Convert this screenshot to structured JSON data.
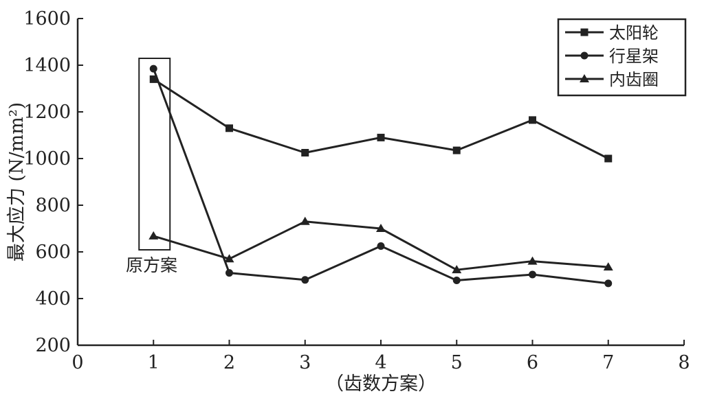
{
  "chart_data": {
    "type": "line",
    "xlabel": "（齿数方案）",
    "ylabel": "最大应力 (N/mm²)",
    "xlim": [
      0,
      8
    ],
    "ylim": [
      200,
      1600
    ],
    "xticks": [
      "0",
      "1",
      "2",
      "3",
      "4",
      "5",
      "6",
      "7",
      "8"
    ],
    "yticks": [
      "200",
      "400",
      "600",
      "800",
      "1000",
      "1200",
      "1400",
      "1600"
    ],
    "grid": false,
    "legend_position": "top-right",
    "x": [
      1,
      2,
      3,
      4,
      5,
      6,
      7
    ],
    "series": [
      {
        "name": "太阳轮",
        "marker": "square",
        "values": [
          1340,
          1130,
          1025,
          1090,
          1035,
          1165,
          1000
        ]
      },
      {
        "name": "行星架",
        "marker": "circle",
        "values": [
          1385,
          510,
          480,
          625,
          478,
          503,
          465
        ]
      },
      {
        "name": "内齿圈",
        "marker": "triangle",
        "values": [
          668,
          570,
          730,
          700,
          523,
          560,
          535
        ]
      }
    ],
    "annotations": [
      {
        "text": "原方案",
        "x": 1
      }
    ],
    "colors": {
      "line": "#222222",
      "box": "#222222"
    }
  }
}
